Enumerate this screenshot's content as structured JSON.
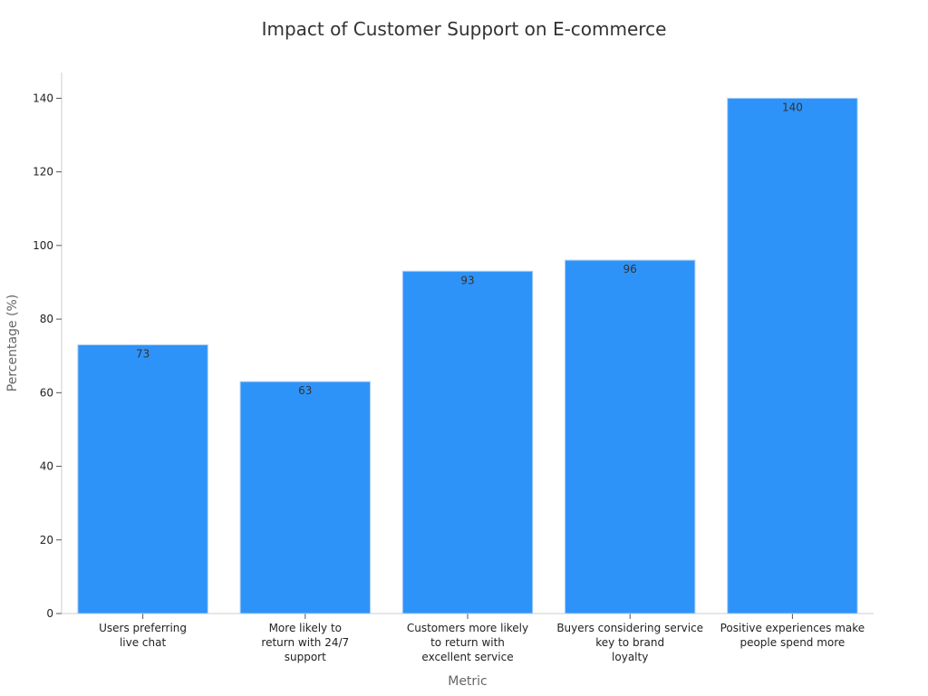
{
  "chart_data": {
    "type": "bar",
    "title": "Impact of Customer Support on E-commerce",
    "xlabel": "Metric",
    "ylabel": "Percentage (%)",
    "categories": [
      [
        "Users preferring",
        "live chat"
      ],
      [
        "More likely to",
        "return with 24/7",
        "support"
      ],
      [
        "Customers more likely",
        "to return with",
        "excellent service"
      ],
      [
        "Buyers considering service",
        "key to brand",
        "loyalty"
      ],
      [
        "Positive experiences make",
        "people spend more"
      ]
    ],
    "values": [
      73,
      63,
      93,
      96,
      140
    ],
    "data_labels": [
      "73",
      "63",
      "93",
      "96",
      "140"
    ],
    "ylim": [
      0,
      147
    ],
    "yticks": [
      0,
      20,
      40,
      60,
      80,
      100,
      120,
      140
    ],
    "ytick_labels": [
      "0",
      "20",
      "40",
      "60",
      "80",
      "100",
      "120",
      "140"
    ],
    "bar_color": "#2e93f8",
    "bar_edge_color": "#a9cdf5",
    "grid": false,
    "legend": "none"
  }
}
